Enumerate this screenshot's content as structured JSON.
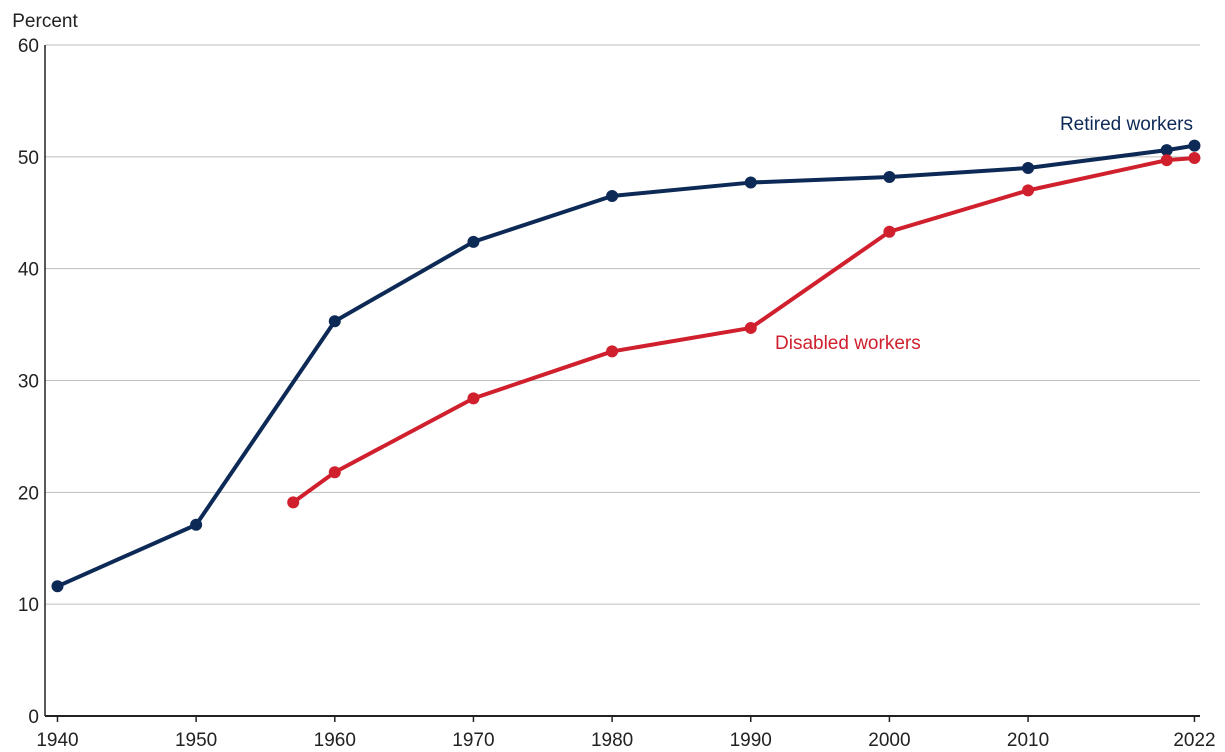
{
  "chart_data": {
    "type": "line",
    "ylabel": "Percent",
    "xlim": [
      1939.1,
      2022.4
    ],
    "xticks": [
      1940,
      1950,
      1960,
      1970,
      1980,
      1990,
      2000,
      2010,
      2022
    ],
    "ylim": [
      0,
      60
    ],
    "yticks": [
      0,
      10,
      20,
      30,
      40,
      50,
      60
    ],
    "grid": true,
    "series": [
      {
        "name": "Retired workers",
        "color": "#0d2a57",
        "x": [
          1940,
          1950,
          1960,
          1970,
          1980,
          1990,
          2000,
          2010,
          2020,
          2022
        ],
        "values": [
          11.6,
          17.1,
          35.3,
          42.4,
          46.5,
          47.7,
          48.2,
          49.0,
          50.6,
          51.0
        ]
      },
      {
        "name": "Disabled workers",
        "color": "#d0202e",
        "x": [
          1957,
          1960,
          1970,
          1980,
          1990,
          2000,
          2010,
          2020,
          2022
        ],
        "values": [
          19.1,
          21.8,
          28.4,
          32.6,
          34.7,
          43.3,
          47.0,
          49.7,
          49.9
        ]
      }
    ]
  }
}
